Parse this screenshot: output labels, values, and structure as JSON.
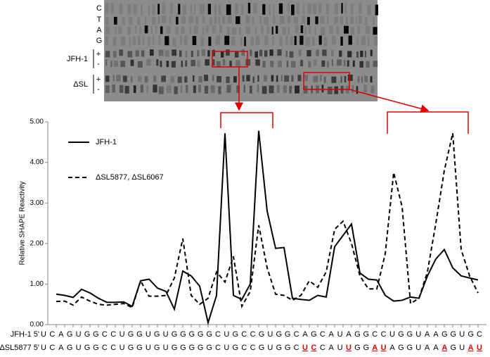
{
  "gel": {
    "lanes": [
      "C",
      "T",
      "A",
      "G"
    ],
    "samples": [
      {
        "name": "JFH-1",
        "signs": [
          "+",
          "-"
        ]
      },
      {
        "name": "ΔSL",
        "signs": [
          "+",
          "-"
        ]
      }
    ]
  },
  "chart_data": {
    "type": "line",
    "ylabel": "Relative SHAPE Reactivity",
    "ylim": [
      0,
      5
    ],
    "yticks": [
      {
        "value": 0,
        "label": "0.00"
      },
      {
        "value": 1,
        "label": "1.00"
      },
      {
        "value": 2,
        "label": "2.00"
      },
      {
        "value": 3,
        "label": "3.00"
      },
      {
        "value": 4,
        "label": "4.00"
      },
      {
        "value": 5,
        "label": "5.00"
      }
    ],
    "categories": [
      "U",
      "C",
      "A",
      "G",
      "U",
      "G",
      "G",
      "C",
      "C",
      "U",
      "G",
      "G",
      "U",
      "G",
      "U",
      "G",
      "G",
      "G",
      "G",
      "G",
      "C",
      "U",
      "G",
      "C",
      "C",
      "G",
      "U",
      "G",
      "G",
      "C",
      "A",
      "G",
      "C",
      "A",
      "U",
      "A",
      "G",
      "G",
      "C",
      "C",
      "U",
      "G",
      "G",
      "U",
      "A",
      "A",
      "G",
      "G",
      "U",
      "G",
      "C"
    ],
    "sequences": [
      {
        "name": "JFH-1 5'",
        "letters": [
          "U",
          "C",
          "A",
          "G",
          "U",
          "G",
          "G",
          "C",
          "C",
          "U",
          "G",
          "G",
          "U",
          "G",
          "U",
          "G",
          "G",
          "G",
          "G",
          "G",
          "C",
          "U",
          "G",
          "C",
          "C",
          "G",
          "U",
          "G",
          "G",
          "C",
          "A",
          "G",
          "C",
          "A",
          "U",
          "A",
          "G",
          "G",
          "C",
          "C",
          "U",
          "G",
          "G",
          "U",
          "A",
          "A",
          "G",
          "G",
          "U",
          "G",
          "C"
        ],
        "highlight": []
      },
      {
        "name": "ΔSL5877 5'",
        "letters": [
          "U",
          "C",
          "A",
          "G",
          "U",
          "G",
          "G",
          "C",
          "C",
          "U",
          "G",
          "G",
          "U",
          "G",
          "U",
          "G",
          "G",
          "G",
          "G",
          "G",
          "C",
          "U",
          "G",
          "C",
          "C",
          "G",
          "U",
          "G",
          "G",
          "C",
          "U",
          "C",
          "C",
          "A",
          "U",
          "U",
          "G",
          "G",
          "A",
          "U",
          "A",
          "G",
          "G",
          "U",
          "A",
          "A",
          "A",
          "G",
          "U",
          "A",
          "U"
        ],
        "highlight": [
          30,
          31,
          35,
          38,
          39,
          46,
          49,
          50
        ],
        "highlight_color": "#e00000"
      }
    ],
    "series": [
      {
        "name": "JFH-1",
        "color": "#000000",
        "dash": false,
        "values": [
          0.75,
          0.72,
          0.67,
          0.87,
          0.78,
          0.65,
          0.55,
          0.55,
          0.56,
          0.45,
          1.08,
          1.12,
          0.9,
          0.82,
          0.38,
          1.32,
          1.2,
          0.95,
          0.05,
          0.72,
          4.72,
          0.72,
          0.62,
          1.0,
          4.78,
          2.8,
          1.88,
          1.9,
          0.65,
          0.62,
          0.6,
          0.72,
          0.68,
          1.92,
          2.2,
          2.48,
          1.27,
          1.12,
          1.1,
          0.72,
          0.58,
          0.6,
          0.68,
          0.65,
          1.2,
          1.62,
          1.85,
          1.4,
          1.2,
          1.15,
          1.1
        ]
      },
      {
        "name": "ΔSL5877, ΔSL6067",
        "color": "#000000",
        "dash": true,
        "values": [
          0.57,
          0.58,
          0.48,
          0.68,
          0.58,
          0.5,
          0.48,
          0.5,
          0.52,
          0.42,
          1.08,
          0.7,
          0.7,
          0.72,
          1.15,
          2.12,
          0.72,
          0.5,
          0.65,
          1.3,
          1.05,
          1.68,
          0.45,
          0.82,
          2.45,
          1.4,
          0.75,
          0.72,
          0.6,
          0.72,
          1.08,
          0.92,
          1.3,
          2.35,
          2.55,
          2.0,
          1.2,
          0.88,
          0.88,
          1.75,
          3.75,
          2.9,
          0.52,
          0.65,
          1.3,
          2.5,
          3.8,
          4.72,
          1.85,
          1.2,
          0.78
        ]
      }
    ],
    "legend": "upper left"
  }
}
